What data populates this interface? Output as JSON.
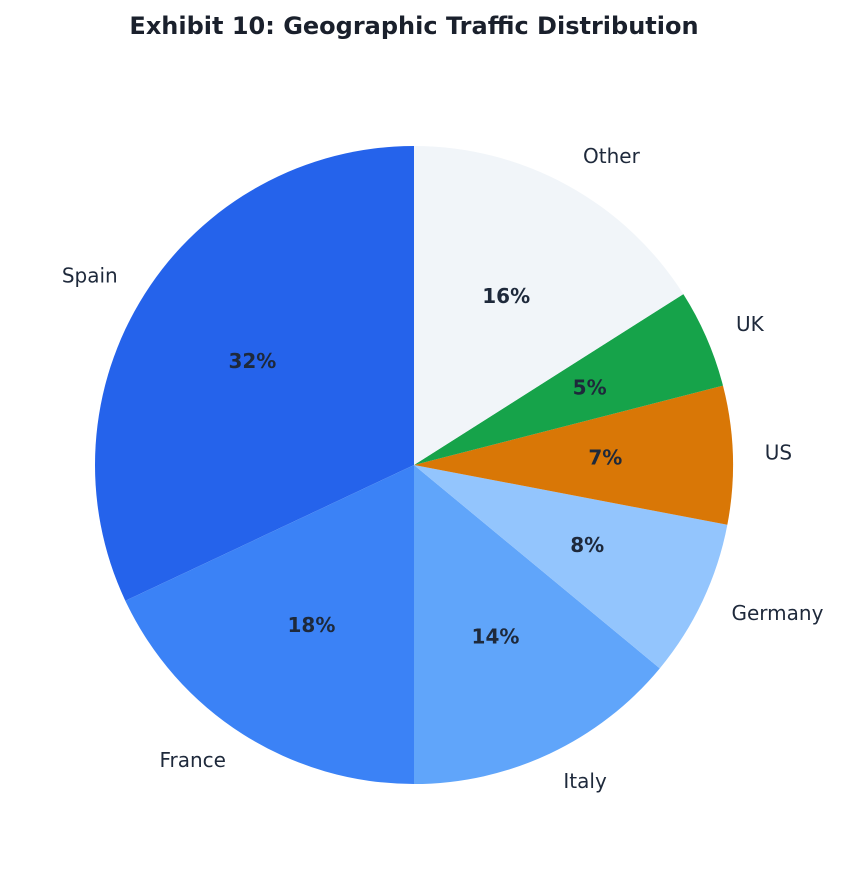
{
  "chart_data": {
    "type": "pie",
    "title": "Exhibit 10: Geographic Traffic Distribution",
    "categories": [
      "Spain",
      "France",
      "Italy",
      "Germany",
      "US",
      "UK",
      "Other"
    ],
    "values": [
      32,
      18,
      14,
      8,
      7,
      5,
      16
    ],
    "value_labels": [
      "32%",
      "18%",
      "14%",
      "8%",
      "7%",
      "5%",
      "16%"
    ],
    "colors": [
      "#2563eb",
      "#3b82f6",
      "#60a5fa",
      "#93c5fd",
      "#d97706",
      "#16a34a",
      "#f1f5f9"
    ]
  }
}
